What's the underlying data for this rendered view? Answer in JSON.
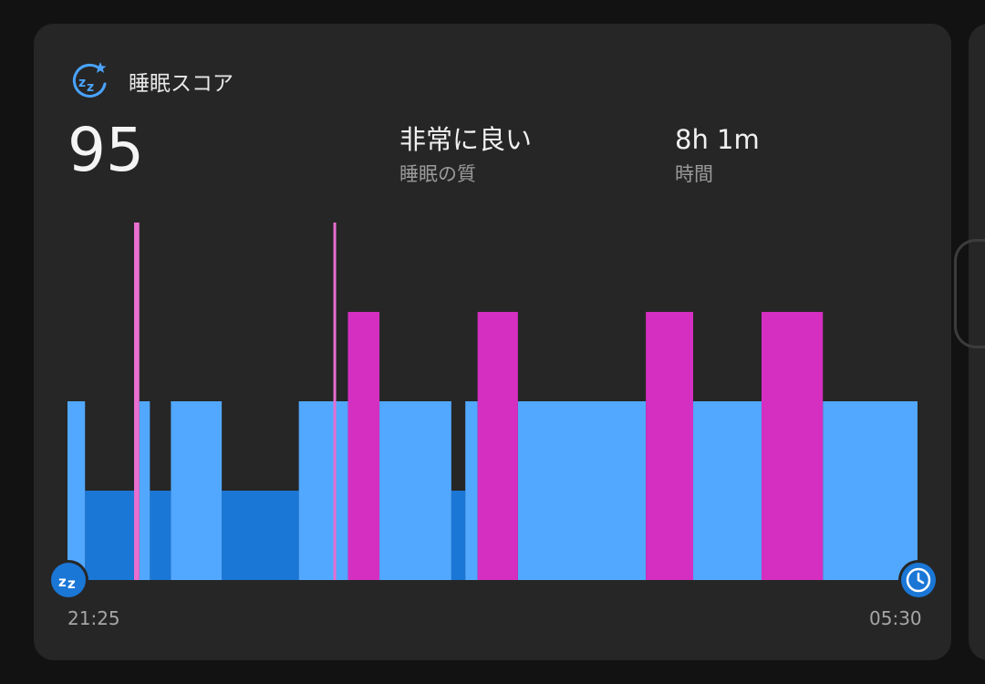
{
  "header": {
    "title": "睡眠スコア",
    "icon": "sleep-zzz-star-icon"
  },
  "summary": {
    "score": "95",
    "quality_value": "非常に良い",
    "quality_label": "睡眠の質",
    "duration_value": "8h 1m",
    "duration_label": "時間"
  },
  "chart_data": {
    "type": "sleep-stages",
    "start_time": "21:25",
    "end_time": "05:30",
    "total_minutes": 485,
    "stages": [
      "awake",
      "rem",
      "light",
      "deep"
    ],
    "colors": {
      "awake": "#e86fd0",
      "rem": "#d42fc1",
      "light": "#52a8ff",
      "deep": "#1b77d6"
    },
    "segments": [
      {
        "stage": "light",
        "start": 0,
        "end": 10
      },
      {
        "stage": "deep",
        "start": 10,
        "end": 38
      },
      {
        "stage": "awake",
        "start": 38,
        "end": 41
      },
      {
        "stage": "light",
        "start": 41,
        "end": 47
      },
      {
        "stage": "deep",
        "start": 47,
        "end": 59
      },
      {
        "stage": "light",
        "start": 59,
        "end": 88
      },
      {
        "stage": "deep",
        "start": 88,
        "end": 132
      },
      {
        "stage": "light",
        "start": 132,
        "end": 152
      },
      {
        "stage": "awake",
        "start": 152,
        "end": 153
      },
      {
        "stage": "light",
        "start": 153,
        "end": 160
      },
      {
        "stage": "rem",
        "start": 160,
        "end": 178
      },
      {
        "stage": "light",
        "start": 178,
        "end": 219
      },
      {
        "stage": "deep",
        "start": 219,
        "end": 227
      },
      {
        "stage": "light",
        "start": 227,
        "end": 234
      },
      {
        "stage": "rem",
        "start": 234,
        "end": 257
      },
      {
        "stage": "light",
        "start": 257,
        "end": 330
      },
      {
        "stage": "rem",
        "start": 330,
        "end": 357
      },
      {
        "stage": "light",
        "start": 357,
        "end": 396
      },
      {
        "stage": "rem",
        "start": 396,
        "end": 431
      },
      {
        "stage": "light",
        "start": 431,
        "end": 485
      }
    ]
  },
  "markers": {
    "start_icon": "sleep-zz-icon",
    "end_icon": "alarm-clock-icon"
  }
}
